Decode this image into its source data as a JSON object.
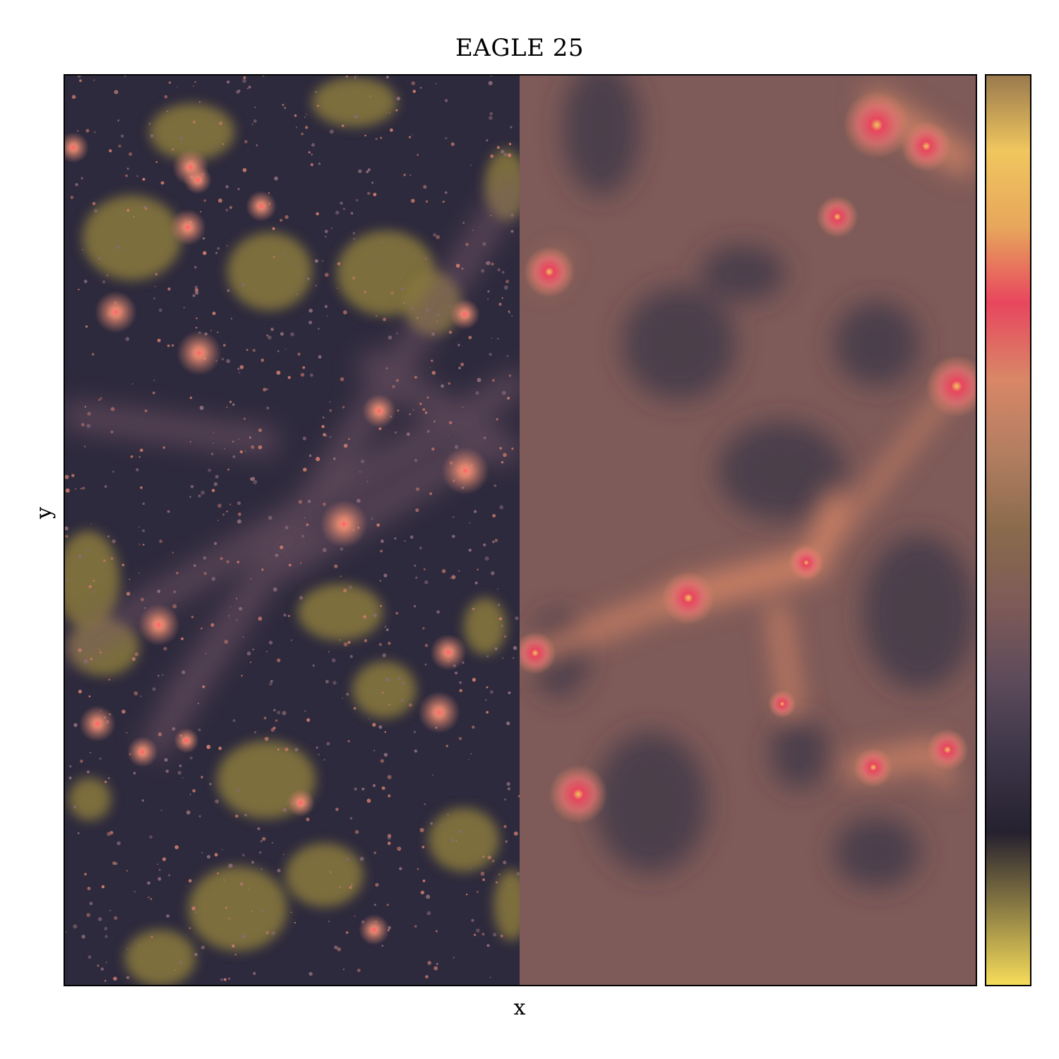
{
  "title": "EAGLE 25",
  "xlabel": "x",
  "ylabel": "y",
  "colormap": {
    "stops": [
      "#f6dc5a",
      "#8d7e44",
      "#26212f",
      "#3b3548",
      "#5c4a5a",
      "#7e5a58",
      "#8a6a4c",
      "#b27d61",
      "#d98767",
      "#e8465e",
      "#e7a65c",
      "#f0c65e",
      "#9a7a4e"
    ]
  },
  "left_panel_style": {
    "background": "#2e2a3d",
    "void_color": "#8a7a3c",
    "halo_color": "#d87a6c",
    "core_color": "#ff7a7a"
  },
  "right_panel_style": {
    "background": "#7e5a58",
    "void_color": "#3e3848",
    "filament_color": "#d98767",
    "core_color": "#e8465e"
  }
}
